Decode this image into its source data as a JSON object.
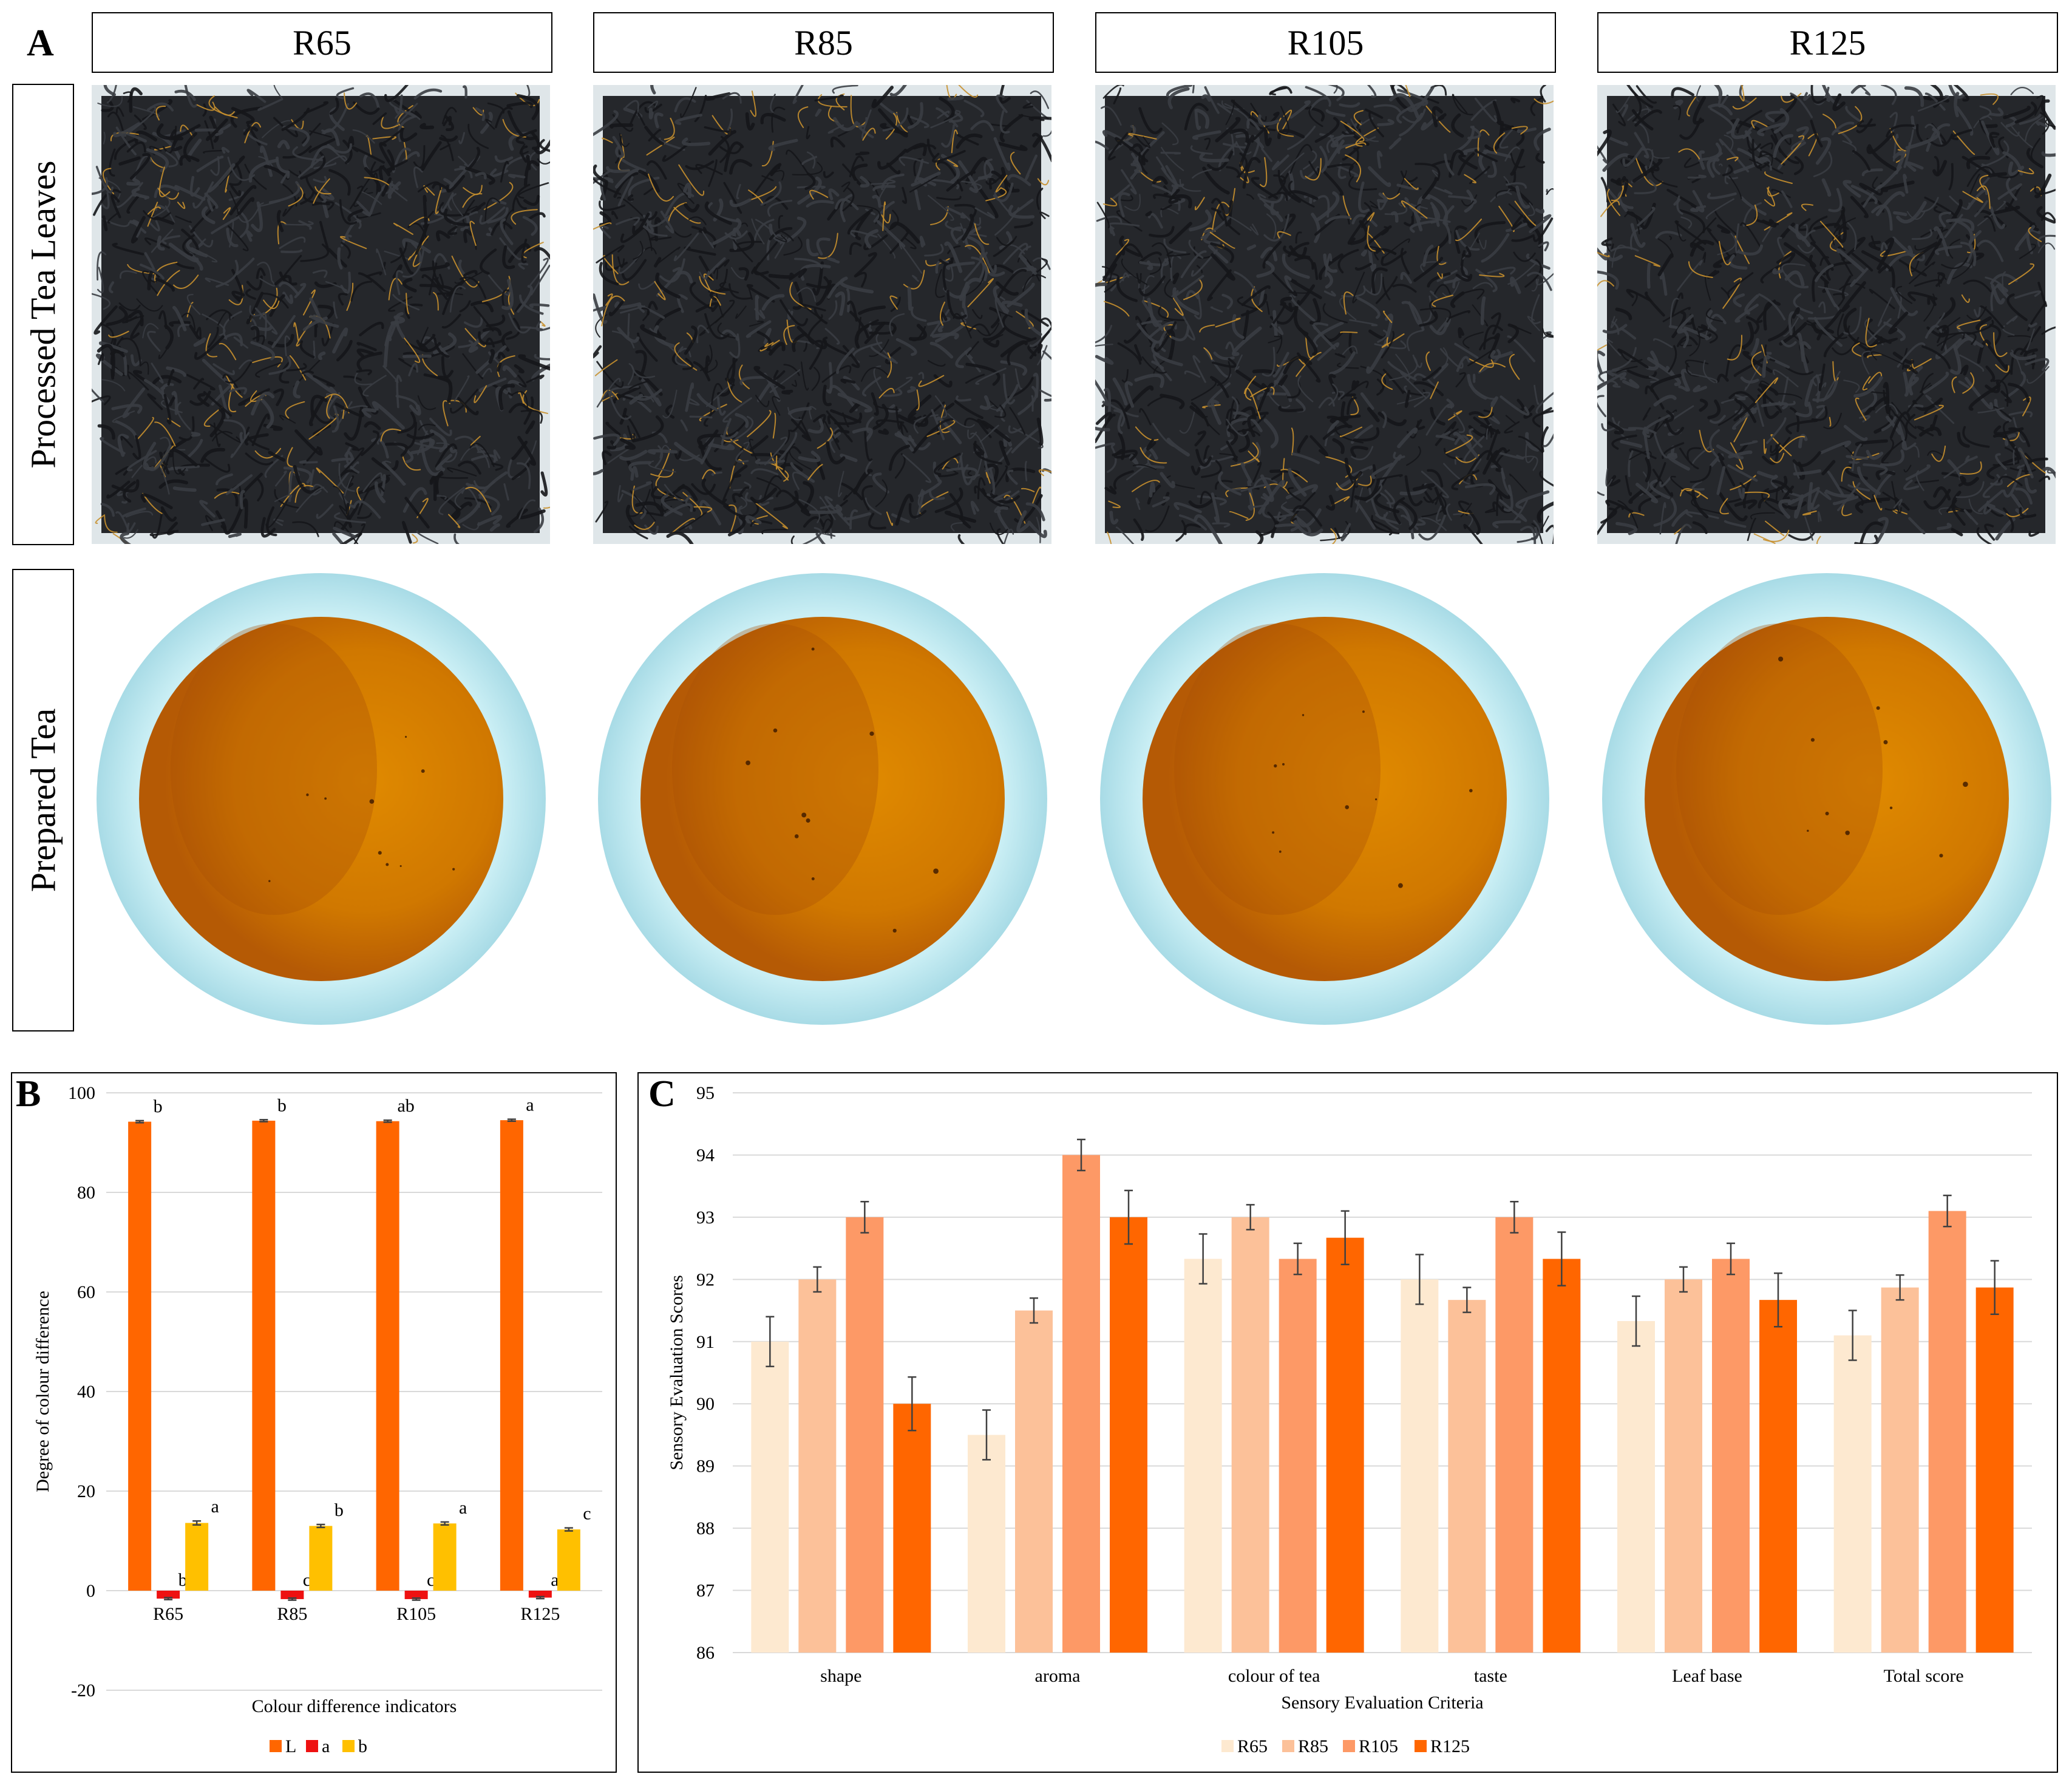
{
  "panel_a": {
    "letter": "A",
    "columns": [
      "R65",
      "R85",
      "R105",
      "R125"
    ],
    "row_labels": [
      "Processed Tea Leaves",
      "Prepared Tea"
    ],
    "colors": {
      "leaf_bg": "#dfe6e9",
      "leaf_dark": "#25272b",
      "leaf_tip": "#c8902e",
      "cup_rim": "#a8dbe6",
      "tea_dark": "#b55a05",
      "tea_light": "#e08a00"
    }
  },
  "chart_data": [
    {
      "id": "B",
      "letter": "B",
      "type": "bar",
      "title": "",
      "xlabel": "Colour difference indicators",
      "ylabel": "Degree of colour difference",
      "ylim": [
        -20,
        100
      ],
      "yticks": [
        "100",
        "80",
        "60",
        "40",
        "20",
        "0",
        "-20"
      ],
      "grid": true,
      "legend_position": "bottom",
      "categories": [
        "R65",
        "R85",
        "R105",
        "R125"
      ],
      "series": [
        {
          "name": "L",
          "color": "#ff6600",
          "values": [
            94.2,
            94.4,
            94.3,
            94.5
          ],
          "errors": [
            0.2,
            0.2,
            0.2,
            0.2
          ],
          "letters": [
            "b",
            "b",
            "ab",
            "a"
          ]
        },
        {
          "name": "a",
          "color": "#ee1111",
          "values": [
            -1.6,
            -1.7,
            -1.7,
            -1.4
          ],
          "errors": [
            0.2,
            0.2,
            0.2,
            0.2
          ],
          "letters": [
            "b",
            "c",
            "c",
            "a"
          ]
        },
        {
          "name": "b",
          "color": "#ffc000",
          "values": [
            13.6,
            13.0,
            13.5,
            12.3
          ],
          "errors": [
            0.4,
            0.3,
            0.3,
            0.3
          ],
          "letters": [
            "a",
            "b",
            "a",
            "c"
          ]
        }
      ]
    },
    {
      "id": "C",
      "letter": "C",
      "type": "bar",
      "title": "",
      "xlabel": "Sensory Evaluation Criteria",
      "ylabel": "Sensory Evaluation Scores",
      "ylim": [
        86,
        95
      ],
      "yticks": [
        "95",
        "94",
        "93",
        "92",
        "91",
        "90",
        "89",
        "88",
        "87",
        "86"
      ],
      "grid": true,
      "legend_position": "bottom",
      "categories": [
        "shape",
        "aroma",
        "colour of tea",
        "taste",
        "Leaf base",
        "Total score"
      ],
      "series": [
        {
          "name": "R65",
          "color": "#fde9d0",
          "values": [
            91.0,
            89.5,
            92.33,
            92.0,
            91.33,
            91.1
          ],
          "errors": [
            0.4,
            0.4,
            0.4,
            0.4,
            0.4,
            0.4
          ]
        },
        {
          "name": "R85",
          "color": "#fcc199",
          "values": [
            92.0,
            91.5,
            93.0,
            91.67,
            92.0,
            91.87
          ],
          "errors": [
            0.2,
            0.2,
            0.2,
            0.2,
            0.2,
            0.2
          ]
        },
        {
          "name": "R105",
          "color": "#fd9966",
          "values": [
            93.0,
            94.0,
            92.33,
            93.0,
            92.33,
            93.1
          ],
          "errors": [
            0.25,
            0.25,
            0.25,
            0.25,
            0.25,
            0.25
          ]
        },
        {
          "name": "R125",
          "color": "#ff6600",
          "values": [
            90.0,
            93.0,
            92.67,
            92.33,
            91.67,
            91.87
          ],
          "errors": [
            0.43,
            0.43,
            0.43,
            0.43,
            0.43,
            0.43
          ]
        }
      ]
    }
  ]
}
